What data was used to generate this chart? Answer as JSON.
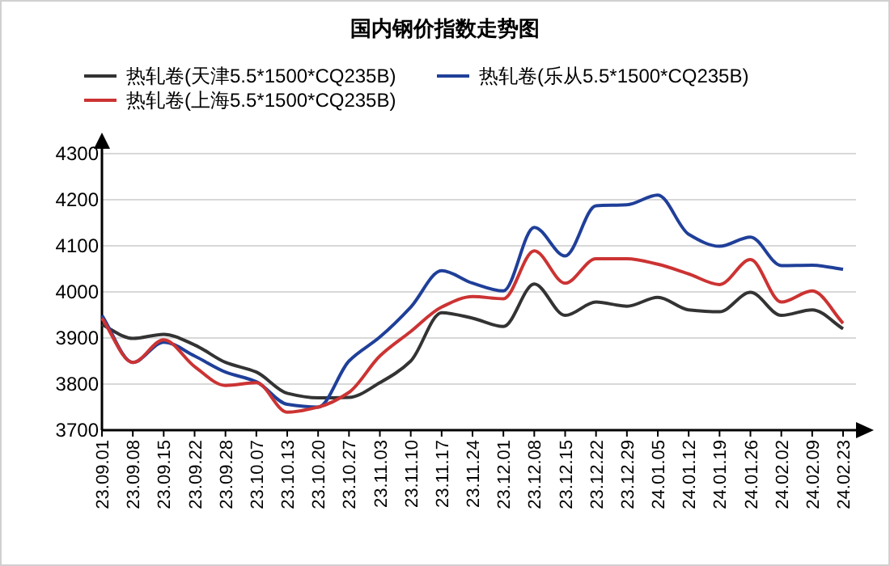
{
  "chart_data": {
    "type": "line",
    "title": "国内钢价指数走势图",
    "categories": [
      "23.09.01",
      "23.09.08",
      "23.09.15",
      "23.09.22",
      "23.09.28",
      "23.10.07",
      "23.10.13",
      "23.10.20",
      "23.10.27",
      "23.11.03",
      "23.11.10",
      "23.11.17",
      "23.11.24",
      "23.12.01",
      "23.12.08",
      "23.12.15",
      "23.12.22",
      "23.12.29",
      "24.01.05",
      "24.01.12",
      "24.01.19",
      "24.01.26",
      "24.02.02",
      "24.02.09",
      "24.02.23"
    ],
    "series": [
      {
        "name": "热轧卷(天津5.5*1500*CQ235B)",
        "color": "#333333",
        "values": [
          3929,
          3899,
          3908,
          3885,
          3847,
          3826,
          3780,
          3770,
          3771,
          3803,
          3850,
          3955,
          3943,
          3925,
          4017,
          3949,
          3978,
          3969,
          3988,
          3961,
          3957,
          3999,
          3949,
          3961,
          3920
        ]
      },
      {
        "name": "热轧卷(乐从5.5*1500*CQ235B)",
        "color": "#1f3f99",
        "values": [
          3949,
          3847,
          3891,
          3861,
          3826,
          3805,
          3756,
          3750,
          3850,
          3902,
          3967,
          4046,
          4019,
          4002,
          4140,
          4078,
          4187,
          4189,
          4210,
          4125,
          4099,
          4119,
          4057,
          4058,
          4049
        ]
      },
      {
        "name": "热轧卷(上海5.5*1500*CQ235B)",
        "color": "#cc3333",
        "values": [
          3943,
          3847,
          3896,
          3838,
          3797,
          3803,
          3739,
          3750,
          3782,
          3861,
          3914,
          3967,
          3990,
          3985,
          4089,
          4019,
          4072,
          4072,
          4060,
          4039,
          4016,
          4070,
          3978,
          4002,
          3932
        ]
      }
    ],
    "ylim": [
      3700,
      4300
    ],
    "yticks": [
      3700,
      3800,
      3900,
      4000,
      4100,
      4200,
      4300
    ],
    "grid": "y",
    "legend": "top"
  }
}
